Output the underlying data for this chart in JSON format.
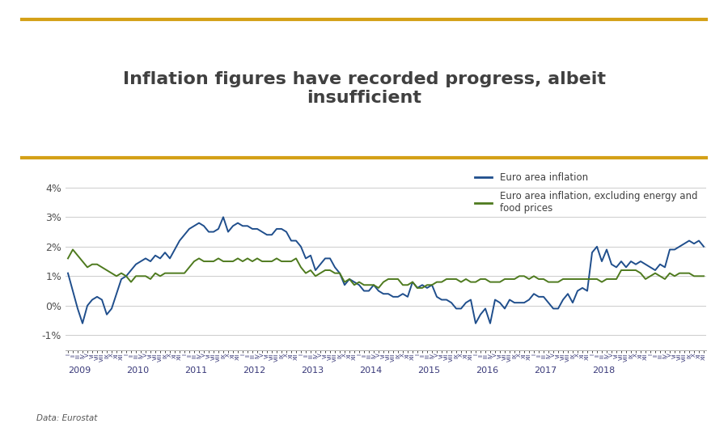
{
  "title": "Inflation figures have recorded progress, albeit\ninsufficient",
  "title_color": "#404040",
  "title_fontsize": 16,
  "source_text": "Data: Eurostat",
  "gold_line_color": "#D4A017",
  "line1_color": "#1F4E8C",
  "line2_color": "#4E7A1E",
  "line1_label": "Euro area inflation",
  "line2_label": "Euro area inflation, excluding energy and\nfood prices",
  "ylim": [
    -0.015,
    0.045
  ],
  "yticks": [
    -0.01,
    0.0,
    0.01,
    0.02,
    0.03,
    0.04
  ],
  "ytick_labels": [
    "-1%",
    "0%",
    "1%",
    "2%",
    "3%",
    "4%"
  ],
  "background_color": "#ffffff",
  "grid_color": "#cccccc",
  "euro_area_inflation": [
    1.1,
    0.5,
    -0.1,
    -0.6,
    0.0,
    0.2,
    0.3,
    0.2,
    -0.3,
    -0.1,
    0.4,
    0.9,
    1.0,
    1.2,
    1.4,
    1.5,
    1.6,
    1.5,
    1.7,
    1.6,
    1.8,
    1.6,
    1.9,
    2.2,
    2.4,
    2.6,
    2.7,
    2.8,
    2.7,
    2.5,
    2.5,
    2.6,
    3.0,
    2.5,
    2.7,
    2.8,
    2.7,
    2.7,
    2.6,
    2.6,
    2.5,
    2.4,
    2.4,
    2.6,
    2.6,
    2.5,
    2.2,
    2.2,
    2.0,
    1.6,
    1.7,
    1.2,
    1.4,
    1.6,
    1.6,
    1.3,
    1.1,
    0.7,
    0.9,
    0.8,
    0.7,
    0.5,
    0.5,
    0.7,
    0.5,
    0.4,
    0.4,
    0.3,
    0.3,
    0.4,
    0.3,
    0.8,
    0.6,
    0.7,
    0.6,
    0.7,
    0.3,
    0.2,
    0.2,
    0.1,
    -0.1,
    -0.1,
    0.1,
    0.2,
    -0.6,
    -0.3,
    -0.1,
    -0.6,
    0.2,
    0.1,
    -0.1,
    0.2,
    0.1,
    0.1,
    0.1,
    0.2,
    0.4,
    0.3,
    0.3,
    0.1,
    -0.1,
    -0.1,
    0.2,
    0.4,
    0.1,
    0.5,
    0.6,
    0.5,
    1.8,
    2.0,
    1.5,
    1.9,
    1.4,
    1.3,
    1.5,
    1.3,
    1.5,
    1.4,
    1.5,
    1.4,
    1.3,
    1.2,
    1.4,
    1.3,
    1.9,
    1.9,
    2.0,
    2.1,
    2.2,
    2.1,
    2.2,
    2.0
  ],
  "euro_area_core_inflation": [
    1.6,
    1.9,
    1.7,
    1.5,
    1.3,
    1.4,
    1.4,
    1.3,
    1.2,
    1.1,
    1.0,
    1.1,
    1.0,
    0.8,
    1.0,
    1.0,
    1.0,
    0.9,
    1.1,
    1.0,
    1.1,
    1.1,
    1.1,
    1.1,
    1.1,
    1.3,
    1.5,
    1.6,
    1.5,
    1.5,
    1.5,
    1.6,
    1.5,
    1.5,
    1.5,
    1.6,
    1.5,
    1.6,
    1.5,
    1.6,
    1.5,
    1.5,
    1.5,
    1.6,
    1.5,
    1.5,
    1.5,
    1.6,
    1.3,
    1.1,
    1.2,
    1.0,
    1.1,
    1.2,
    1.2,
    1.1,
    1.1,
    0.8,
    0.9,
    0.7,
    0.8,
    0.7,
    0.7,
    0.7,
    0.6,
    0.8,
    0.9,
    0.9,
    0.9,
    0.7,
    0.7,
    0.8,
    0.6,
    0.6,
    0.7,
    0.7,
    0.8,
    0.8,
    0.9,
    0.9,
    0.9,
    0.8,
    0.9,
    0.8,
    0.8,
    0.9,
    0.9,
    0.8,
    0.8,
    0.8,
    0.9,
    0.9,
    0.9,
    1.0,
    1.0,
    0.9,
    1.0,
    0.9,
    0.9,
    0.8,
    0.8,
    0.8,
    0.9,
    0.9,
    0.9,
    0.9,
    0.9,
    0.9,
    0.9,
    0.9,
    0.8,
    0.9,
    0.9,
    0.9,
    1.2,
    1.2,
    1.2,
    1.2,
    1.1,
    0.9,
    1.0,
    1.1,
    1.0,
    0.9,
    1.1,
    1.0,
    1.1,
    1.1,
    1.1,
    1.0,
    1.0,
    1.0
  ],
  "x_year_positions": [
    0,
    12,
    24,
    36,
    48,
    60,
    72,
    84,
    96,
    108,
    120
  ],
  "x_year_labels": [
    "2009",
    "2010",
    "2011",
    "2012",
    "2013",
    "2014",
    "2015",
    "2016",
    "2017",
    "2018",
    ""
  ]
}
